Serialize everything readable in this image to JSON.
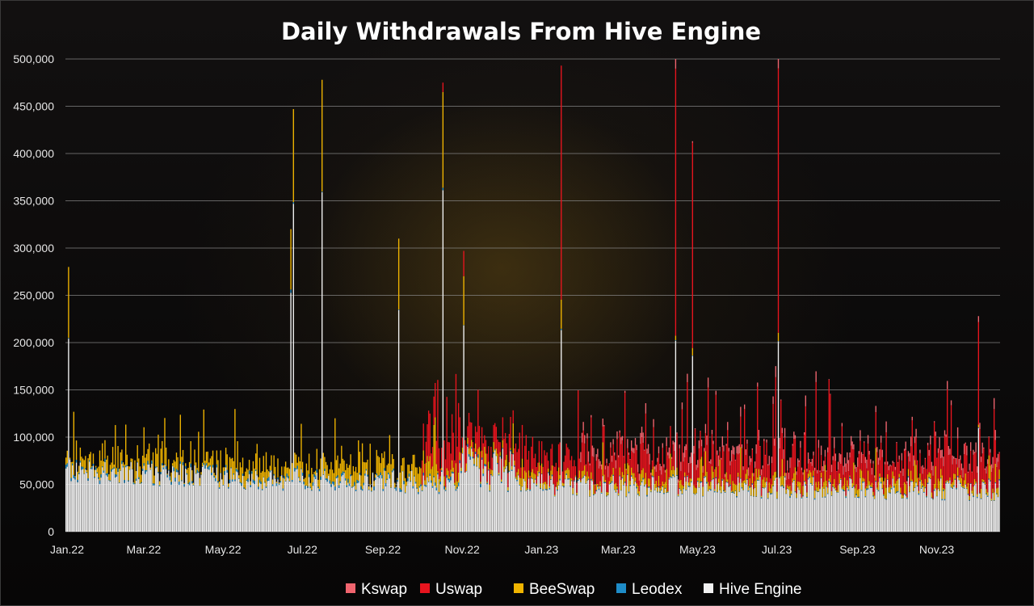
{
  "chart_data": {
    "type": "bar",
    "stacked": true,
    "title": "Daily Withdrawals From Hive Engine",
    "xlabel": "",
    "ylabel": "",
    "ylim": [
      0,
      500000
    ],
    "y_ticks": [
      "0",
      "50,000",
      "100,000",
      "150,000",
      "200,000",
      "250,000",
      "300,000",
      "350,000",
      "400,000",
      "450,000",
      "500,000"
    ],
    "x_ticks": [
      "Jan.22",
      "Mar.22",
      "May.22",
      "Jul.22",
      "Sep.22",
      "Nov.22",
      "Jan.23",
      "Mar.23",
      "May.23",
      "Jul.23",
      "Sep.23",
      "Nov.23"
    ],
    "x_range": [
      "2022-01-01",
      "2023-12-20"
    ],
    "grid": "horizontal",
    "legend_position": "bottom",
    "series": [
      {
        "name": "Kswap",
        "color": "#f0646e"
      },
      {
        "name": "Uswap",
        "color": "#e8141e"
      },
      {
        "name": "BeeSwap",
        "color": "#f0b400"
      },
      {
        "name": "Leodex",
        "color": "#1e8cc8"
      },
      {
        "name": "Hive Engine",
        "color": "#f2f2f2"
      }
    ],
    "notable_daily_totals": [
      {
        "date": "2022-01-03",
        "total": 280000
      },
      {
        "date": "2022-06-23",
        "total": 320000
      },
      {
        "date": "2022-06-25",
        "total": 447000
      },
      {
        "date": "2022-07-17",
        "total": 478000
      },
      {
        "date": "2022-09-14",
        "total": 310000
      },
      {
        "date": "2022-10-18",
        "total": 475000
      },
      {
        "date": "2022-11-03",
        "total": 297000
      },
      {
        "date": "2023-01-17",
        "total": 493000
      },
      {
        "date": "2023-04-15",
        "total": 500000
      },
      {
        "date": "2023-04-28",
        "total": 413000
      },
      {
        "date": "2023-07-03",
        "total": 500000
      },
      {
        "date": "2023-12-04",
        "total": 228000
      }
    ]
  }
}
